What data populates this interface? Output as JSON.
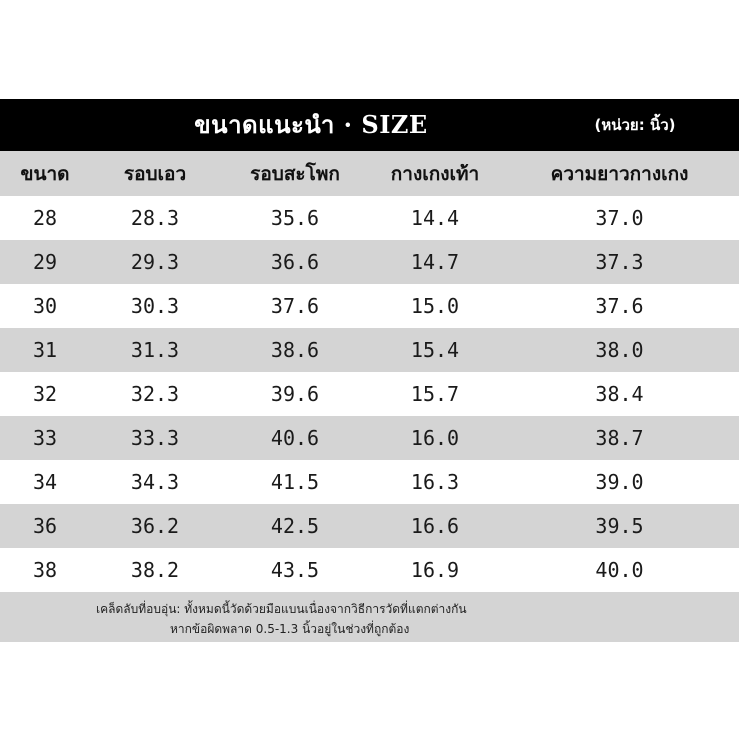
{
  "title": "ขนาดแนะนำ · SIZE",
  "unit": "(หน่วย: นิ้ว)",
  "headers": [
    "ขนาด",
    "รอบเอว",
    "รอบสะโพก",
    "กางเกงเท้า",
    "ความยาวกางเกง"
  ],
  "rows": [
    [
      "28",
      "28.3",
      "35.6",
      "14.4",
      "37.0"
    ],
    [
      "29",
      "29.3",
      "36.6",
      "14.7",
      "37.3"
    ],
    [
      "30",
      "30.3",
      "37.6",
      "15.0",
      "37.6"
    ],
    [
      "31",
      "31.3",
      "38.6",
      "15.4",
      "38.0"
    ],
    [
      "32",
      "32.3",
      "39.6",
      "15.7",
      "38.4"
    ],
    [
      "33",
      "33.3",
      "40.6",
      "16.0",
      "38.7"
    ],
    [
      "34",
      "34.3",
      "41.5",
      "16.3",
      "39.0"
    ],
    [
      "36",
      "36.2",
      "42.5",
      "16.6",
      "39.5"
    ],
    [
      "38",
      "38.2",
      "43.5",
      "16.9",
      "40.0"
    ]
  ],
  "note": {
    "line1": "เคล็ดลับที่อบอุ่น: ทั้งหมดนี้วัดด้วยมือแบนเนื่องจากวิธีการวัดที่แตกต่างกัน",
    "line2": "หากข้อผิดพลาด 0.5-1.3 นิ้วอยู่ในช่วงที่ถูกต้อง"
  },
  "colors": {
    "title_background": "#000000",
    "title_text": "#ffffff",
    "stripe": "#d4d4d4",
    "row_plain": "#ffffff"
  }
}
